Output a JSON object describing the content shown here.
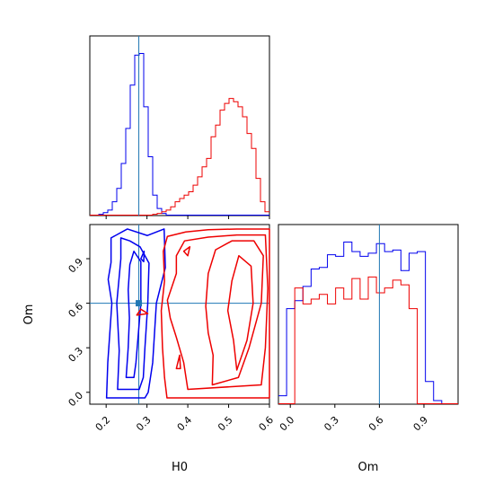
{
  "chart_data": {
    "type": "corner",
    "colors": {
      "blue": "#0000ee",
      "red": "#ee0000",
      "truth": "#1f77b4",
      "frame": "#000000"
    },
    "truths": {
      "H0": 0.28,
      "Om": 0.6
    },
    "axes": {
      "H0": {
        "label": "H0",
        "range": [
          0.16,
          0.6
        ],
        "ticks": [
          "0.2",
          "0.3",
          "0.4",
          "0.5",
          "0.6"
        ],
        "tick_values": [
          0.2,
          0.3,
          0.4,
          0.5,
          0.6
        ]
      },
      "Om": {
        "label": "Om",
        "range": [
          -0.08,
          1.13
        ],
        "ticks": [
          "0.0",
          "0.3",
          "0.6",
          "0.9"
        ],
        "tick_values": [
          0.0,
          0.3,
          0.6,
          0.9
        ]
      }
    },
    "panels": [
      {
        "id": "hist-H0",
        "type": "histogram",
        "x": "H0",
        "bins": [
          0.16,
          0.6,
          40
        ],
        "series": [
          {
            "color": "blue",
            "values": [
              0,
              0,
              0.5,
              1.5,
              3,
              8,
              16,
              31,
              52,
              78,
              96,
              97,
              65,
              35,
              12,
              4,
              1,
              0,
              0,
              0,
              0,
              0,
              0,
              0,
              0,
              0,
              0,
              0,
              0,
              0,
              0,
              0,
              0,
              0,
              0,
              0,
              0,
              0,
              0,
              0
            ]
          },
          {
            "color": "red",
            "values": [
              0,
              0,
              0,
              0,
              0,
              0,
              0,
              0,
              0,
              0,
              0,
              0,
              0,
              0,
              0.5,
              1,
              2,
              3,
              5,
              8,
              10,
              12,
              14,
              18,
              23,
              29,
              34,
              47,
              54,
              63,
              67,
              70,
              68,
              65,
              59,
              49,
              40,
              22,
              8,
              2
            ]
          }
        ]
      },
      {
        "id": "hist-Om",
        "type": "histogram",
        "x": "Om",
        "bins": [
          -0.08,
          1.13,
          22
        ],
        "series": [
          {
            "color": "blue",
            "values": [
              5,
              60,
              65,
              74,
              85,
              86,
              94,
              93,
              102,
              96,
              93,
              95,
              101,
              96,
              97,
              84,
              95,
              96,
              14,
              2,
              0,
              0
            ]
          },
          {
            "color": "red",
            "values": [
              0,
              0,
              73,
              63,
              66,
              69,
              63,
              73,
              66,
              79,
              66,
              80,
              70,
              73,
              78,
              75,
              60,
              0,
              0,
              0,
              0,
              0
            ]
          }
        ]
      },
      {
        "id": "contour-H0-Om",
        "type": "contour",
        "x": "H0",
        "y": "Om",
        "series": [
          {
            "color": "blue",
            "contours": [
              [
                [
                  0.201,
                  -0.038
                ],
                [
                  0.204,
                  0.2
                ],
                [
                  0.214,
                  0.6
                ],
                [
                  0.205,
                  0.76
                ],
                [
                  0.212,
                  0.875
                ],
                [
                  0.212,
                  1.04
                ],
                [
                  0.252,
                  1.1
                ],
                [
                  0.301,
                  1.056
                ],
                [
                  0.342,
                  1.1
                ],
                [
                  0.345,
                  0.84
                ],
                [
                  0.323,
                  0.6
                ],
                [
                  0.314,
                  0.2
                ],
                [
                  0.303,
                  0.0
                ],
                [
                  0.295,
                  -0.038
                ]
              ],
              [
                [
                  0.228,
                  0.02
                ],
                [
                  0.232,
                  0.28
                ],
                [
                  0.226,
                  0.6
                ],
                [
                  0.236,
                  0.9
                ],
                [
                  0.236,
                  1.04
                ],
                [
                  0.258,
                  1.02
                ],
                [
                  0.283,
                  0.98
                ],
                [
                  0.305,
                  0.87
                ],
                [
                  0.302,
                  0.6
                ],
                [
                  0.295,
                  0.3
                ],
                [
                  0.291,
                  0.1
                ],
                [
                  0.281,
                  0.02
                ]
              ],
              [
                [
                  0.249,
                  0.1
                ],
                [
                  0.254,
                  0.3
                ],
                [
                  0.257,
                  0.5
                ],
                [
                  0.254,
                  0.69
                ],
                [
                  0.258,
                  0.86
                ],
                [
                  0.268,
                  0.95
                ],
                [
                  0.285,
                  0.88
                ],
                [
                  0.285,
                  0.6
                ],
                [
                  0.279,
                  0.4
                ],
                [
                  0.273,
                  0.2
                ],
                [
                  0.268,
                  0.1
                ]
              ],
              [
                [
                  0.285,
                  0.9
                ],
                [
                  0.293,
                  0.95
                ],
                [
                  0.292,
                  0.88
                ]
              ]
            ]
          },
          {
            "color": "red",
            "contours": [
              [
                [
                  0.349,
                  -0.038
                ],
                [
                  0.343,
                  0.1
                ],
                [
                  0.338,
                  0.3
                ],
                [
                  0.335,
                  0.55
                ],
                [
                  0.343,
                  0.75
                ],
                [
                  0.34,
                  0.95
                ],
                [
                  0.35,
                  1.05
                ],
                [
                  0.395,
                  1.08
                ],
                [
                  0.45,
                  1.095
                ],
                [
                  0.52,
                  1.1
                ],
                [
                  0.6,
                  1.1
                ],
                [
                  0.6,
                  -0.038
                ]
              ],
              [
                [
                  0.4,
                  0.02
                ],
                [
                  0.39,
                  0.2
                ],
                [
                  0.372,
                  0.37
                ],
                [
                  0.357,
                  0.5
                ],
                [
                  0.35,
                  0.62
                ],
                [
                  0.372,
                  0.8
                ],
                [
                  0.372,
                  0.92
                ],
                [
                  0.392,
                  1.02
                ],
                [
                  0.45,
                  1.045
                ],
                [
                  0.52,
                  1.06
                ],
                [
                  0.59,
                  1.06
                ],
                [
                  0.596,
                  0.7
                ],
                [
                  0.59,
                  0.3
                ],
                [
                  0.58,
                  0.05
                ]
              ],
              [
                [
                  0.46,
                  0.05
                ],
                [
                  0.462,
                  0.25
                ],
                [
                  0.45,
                  0.4
                ],
                [
                  0.444,
                  0.58
                ],
                [
                  0.45,
                  0.8
                ],
                [
                  0.468,
                  0.96
                ],
                [
                  0.508,
                  1.02
                ],
                [
                  0.562,
                  1.02
                ],
                [
                  0.585,
                  0.92
                ],
                [
                  0.58,
                  0.6
                ],
                [
                  0.55,
                  0.3
                ],
                [
                  0.524,
                  0.1
                ]
              ],
              [
                [
                  0.52,
                  0.15
                ],
                [
                  0.512,
                  0.35
                ],
                [
                  0.498,
                  0.55
                ],
                [
                  0.508,
                  0.75
                ],
                [
                  0.525,
                  0.92
                ],
                [
                  0.555,
                  0.85
                ],
                [
                  0.56,
                  0.6
                ],
                [
                  0.545,
                  0.35
                ]
              ],
              [
                [
                  0.372,
                  0.16
                ],
                [
                  0.38,
                  0.25
                ],
                [
                  0.382,
                  0.16
                ]
              ],
              [
                [
                  0.275,
                  0.52
                ],
                [
                  0.285,
                  0.56
                ],
                [
                  0.302,
                  0.53
                ]
              ],
              [
                [
                  0.39,
                  0.95
                ],
                [
                  0.405,
                  0.98
                ],
                [
                  0.4,
                  0.92
                ]
              ]
            ]
          }
        ]
      }
    ]
  }
}
